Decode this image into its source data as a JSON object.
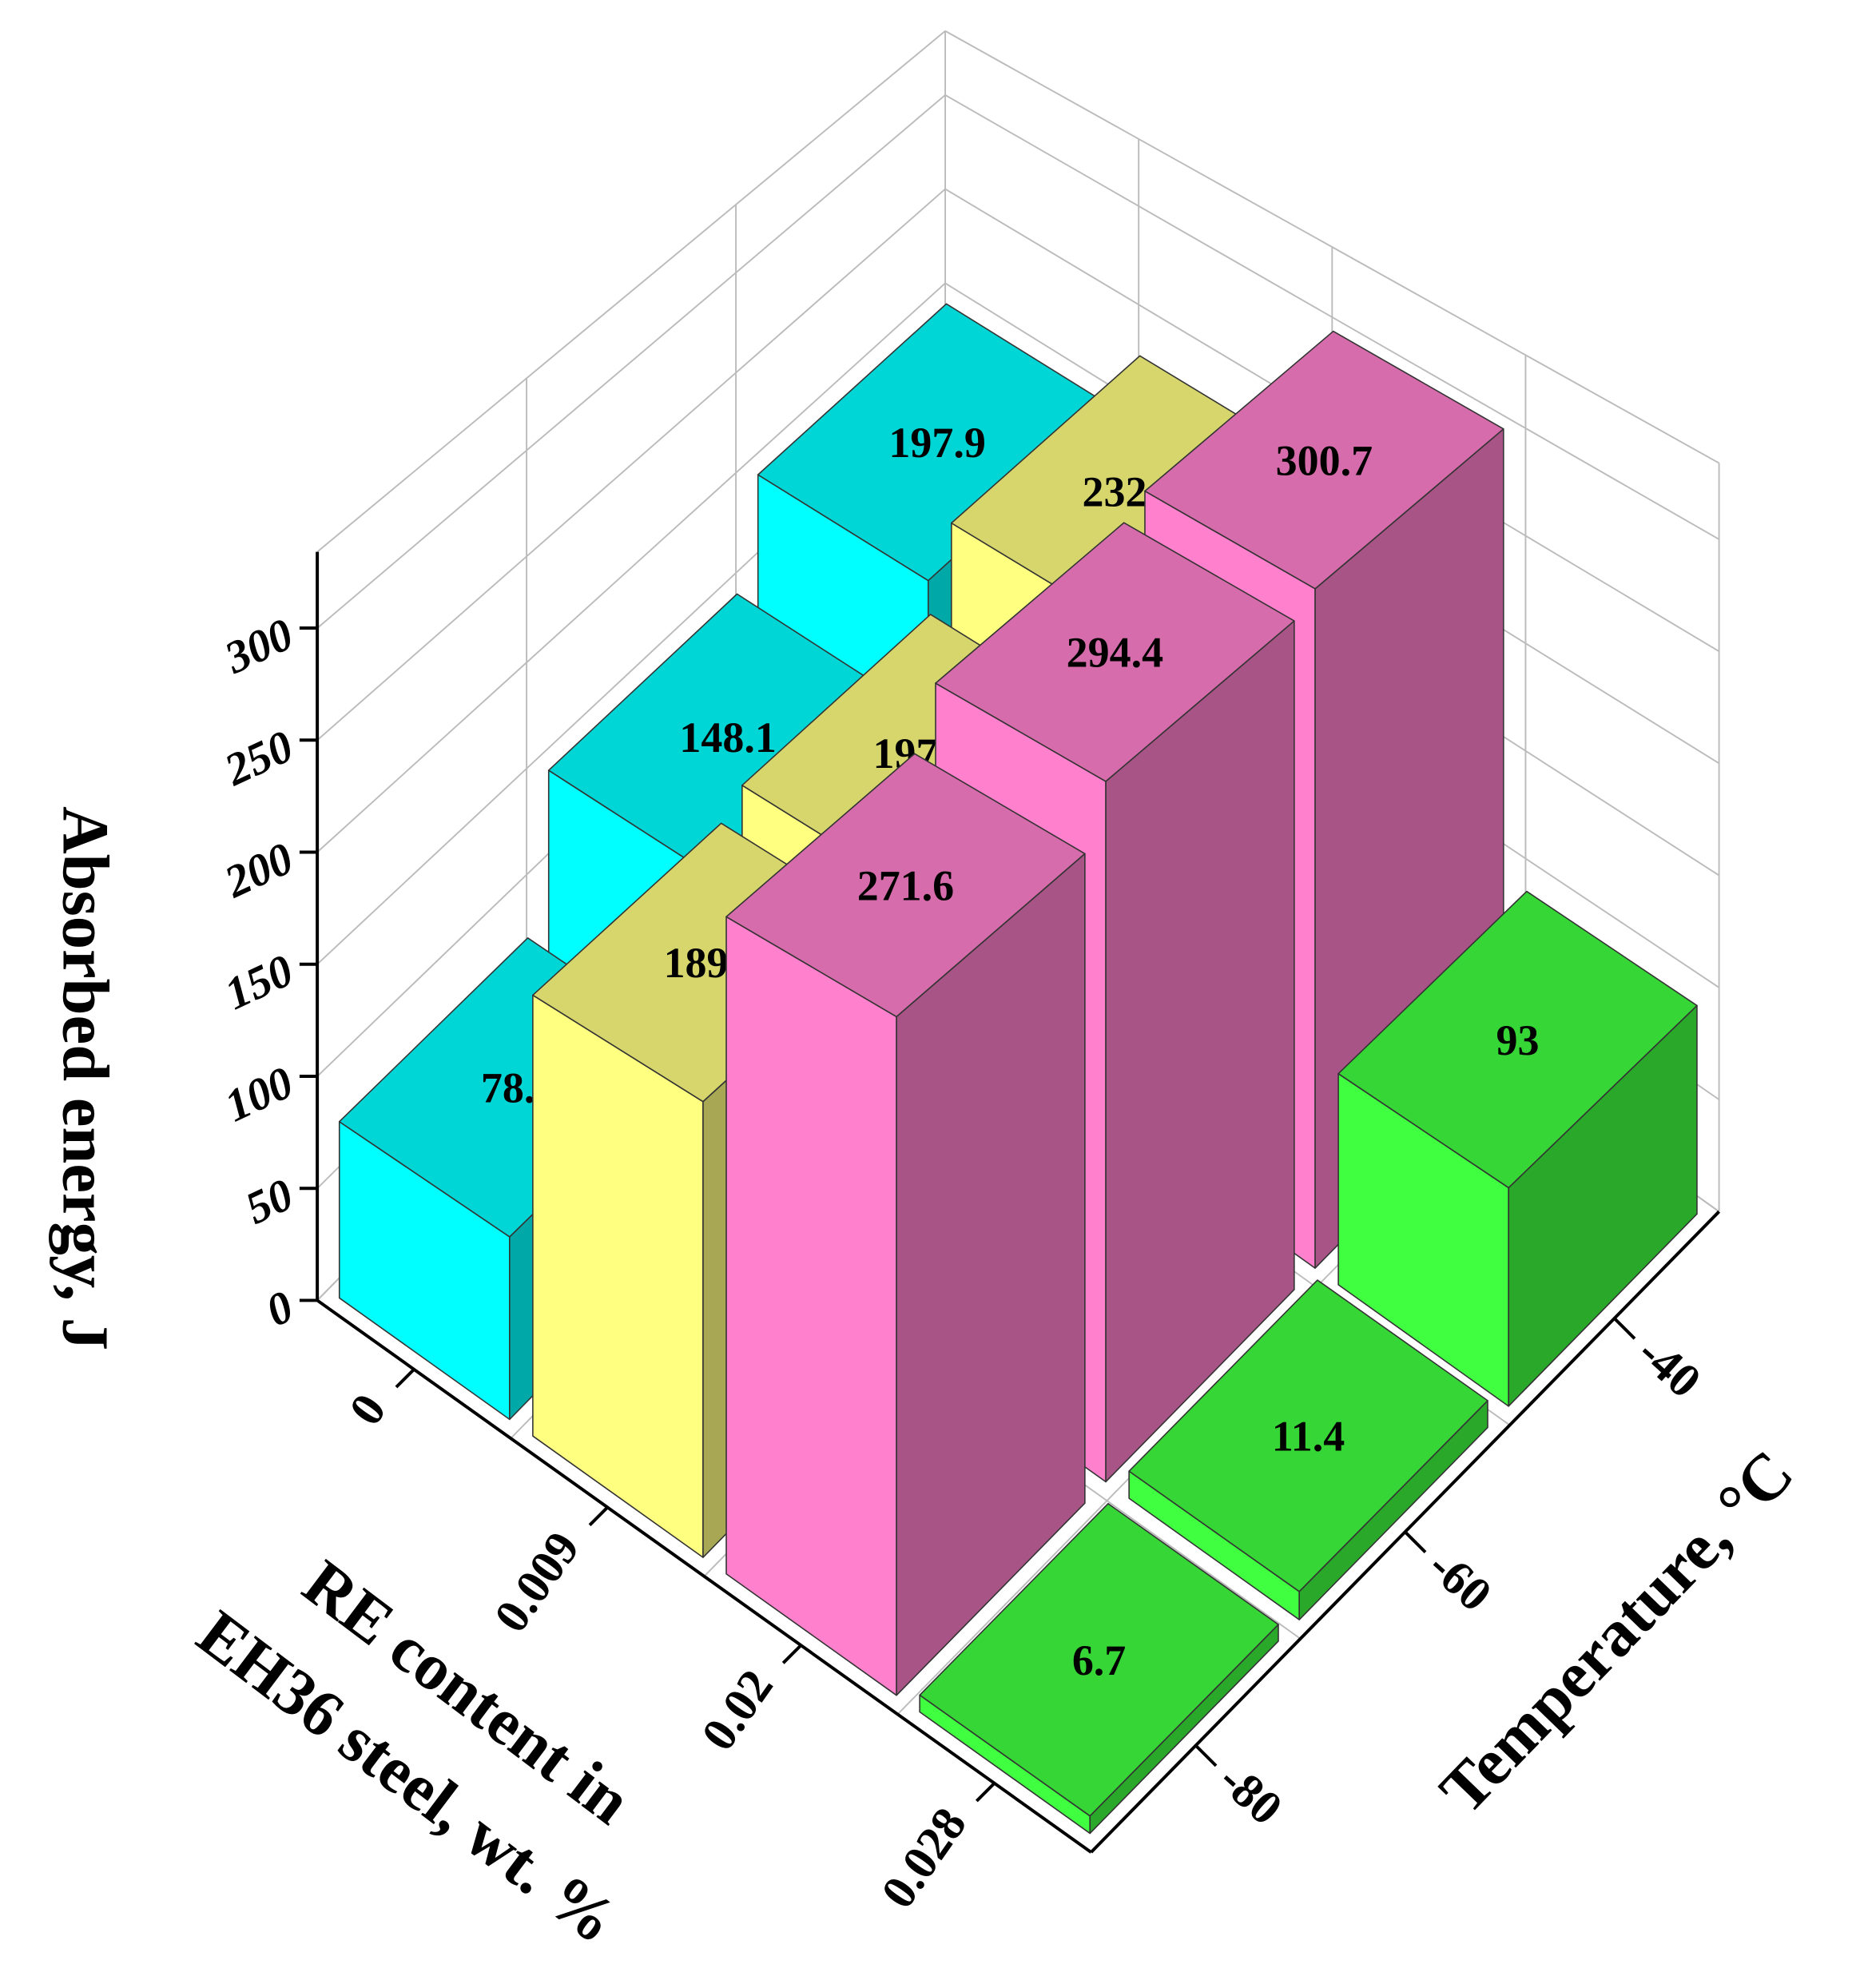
{
  "chart_data": {
    "type": "bar3d",
    "x_label": [
      "RE content in",
      "EH36 steel, wt. %"
    ],
    "y_label": "Temperature, °C",
    "z_label": "Absorbed energy, J",
    "x_categories": [
      "0",
      "0.009",
      "0.02",
      "0.028"
    ],
    "y_categories": [
      "-80",
      "-60",
      "-40"
    ],
    "values": [
      [
        78.7,
        148.1,
        197.9
      ],
      [
        189.2,
        197.7,
        232.3
      ],
      [
        271.6,
        294.4,
        300.7
      ],
      [
        6.7,
        11.4,
        93
      ]
    ],
    "colors": [
      "#00ffff",
      "#ffff80",
      "#ff80cc",
      "#40ff40"
    ],
    "zlim": [
      0,
      334
    ],
    "zticks": [
      0,
      50,
      100,
      150,
      200,
      250,
      300
    ],
    "grid": true
  }
}
